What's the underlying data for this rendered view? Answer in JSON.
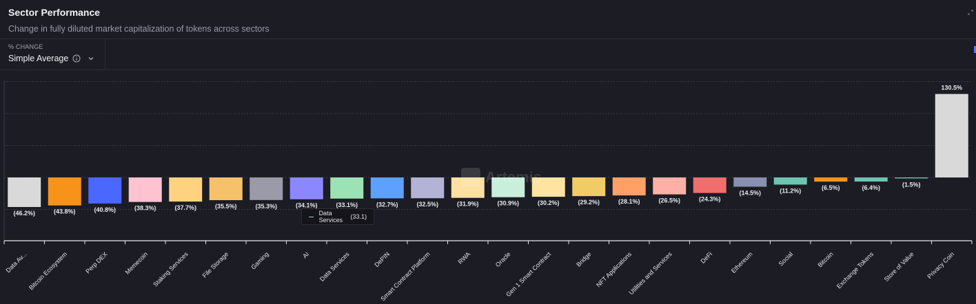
{
  "header": {
    "title": "Sector Performance",
    "subtitle": "Change in fully diluted market capitalization of tokens across sectors"
  },
  "controls": {
    "caption": "% CHANGE",
    "mode": "Simple Average"
  },
  "watermark": "Artemis",
  "tooltip": {
    "label": "Data Services",
    "value": "(33.1)",
    "color": "#9be3b4"
  },
  "chart_data": {
    "type": "bar",
    "categories": [
      "Data Av...",
      "Bitcoin Ecosystem",
      "Perp DEX",
      "Memecoin",
      "Staking Services",
      "File Storage",
      "Gaming",
      "AI",
      "Data Services",
      "DePIN",
      "Smart Contract Platform",
      "RWA",
      "Oracle",
      "Gen 1 Smart Contract",
      "Bridge",
      "NFT Applications",
      "Utilities and Services",
      "DeFi",
      "Ethereum",
      "Social",
      "Bitcoin",
      "Exchange Tokens",
      "Store of Value",
      "Privacy Coin"
    ],
    "values": [
      -46.2,
      -43.8,
      -40.8,
      -38.3,
      -37.7,
      -35.5,
      -35.3,
      -34.1,
      -33.1,
      -32.7,
      -32.5,
      -31.9,
      -30.9,
      -30.2,
      -29.2,
      -28.1,
      -26.5,
      -24.3,
      -14.5,
      -11.2,
      -6.5,
      -6.4,
      -1.5,
      130.5
    ],
    "labels": [
      "(46.2%)",
      "(43.8%)",
      "(40.8%)",
      "(38.3%)",
      "(37.7%)",
      "(35.5%)",
      "(35.3%)",
      "(34.1%)",
      "(33.1%)",
      "(32.7%)",
      "(32.5%)",
      "(31.9%)",
      "(30.9%)",
      "(30.2%)",
      "(29.2%)",
      "(28.1%)",
      "(26.5%)",
      "(24.3%)",
      "(14.5%)",
      "(11.2%)",
      "(6.5%)",
      "(6.4%)",
      "(1.5%)",
      "130.5%"
    ],
    "colors": [
      "#d9d9d9",
      "#f7931a",
      "#4a67ff",
      "#ffc2d1",
      "#ffd27f",
      "#f5c26b",
      "#9b9aa8",
      "#8b87ff",
      "#9be3b4",
      "#5ea0ff",
      "#b3b3d6",
      "#ffe0a3",
      "#c8efdb",
      "#ffe3a0",
      "#f0cc66",
      "#ffa066",
      "#ffb0a6",
      "#ef6f6c",
      "#8a8fb0",
      "#6cc5b0",
      "#f7931a",
      "#6cc5b0",
      "#6cc5b0",
      "#d9d9d9"
    ],
    "ylim": [
      -100,
      150
    ],
    "grid": true,
    "xlabel": "",
    "ylabel": "",
    "title": ""
  }
}
